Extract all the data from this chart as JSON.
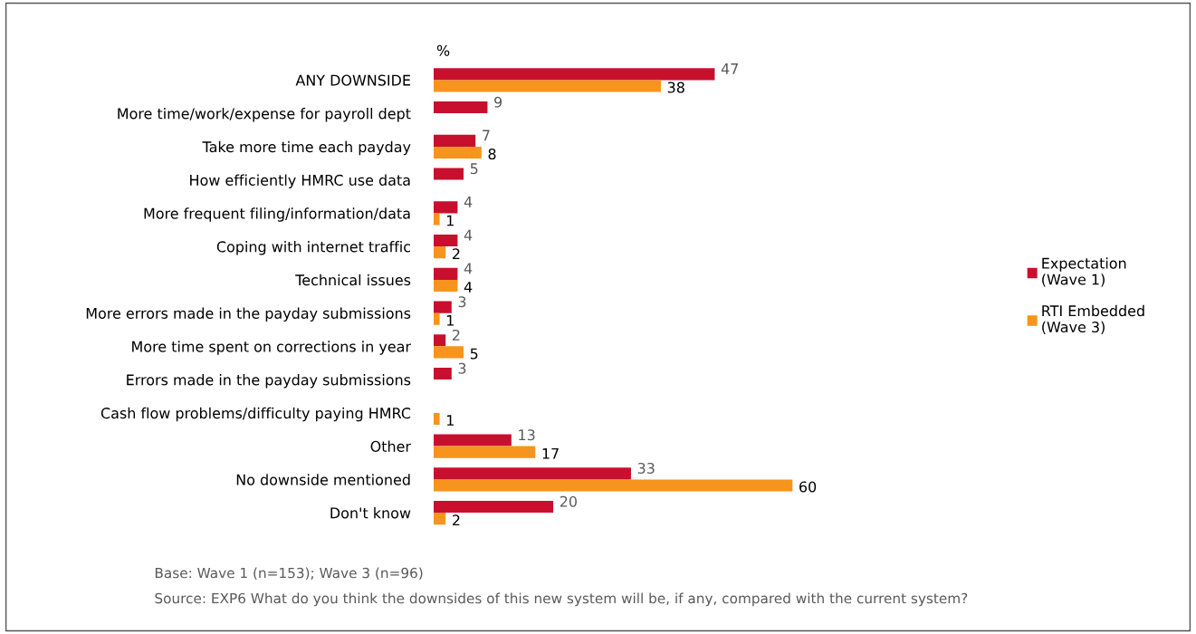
{
  "chart_data": {
    "type": "bar",
    "orientation": "horizontal",
    "xlabel": "%",
    "categories": [
      "ANY DOWNSIDE",
      "More time/work/expense for payroll dept",
      "Take more time each payday",
      "How efficiently HMRC use data",
      "More frequent filing/information/data",
      "Coping with internet traffic",
      "Technical issues",
      "More errors made in the payday submissions",
      "More time spent on corrections in year",
      "Errors made in the payday submissions",
      "Cash flow problems/difficulty paying HMRC",
      "Other",
      "No downside mentioned",
      "Don't know"
    ],
    "series": [
      {
        "name": "Expectation\n(Wave 1)",
        "color": "#c8102e",
        "values": [
          47,
          9,
          7,
          5,
          4,
          4,
          4,
          3,
          2,
          3,
          null,
          13,
          33,
          20
        ]
      },
      {
        "name": "RTI Embedded\n(Wave 3)",
        "color": "#f7941d",
        "values": [
          38,
          null,
          8,
          null,
          1,
          2,
          4,
          1,
          5,
          null,
          1,
          17,
          60,
          2
        ]
      }
    ],
    "data_labels": true,
    "legend": "right",
    "grid": false,
    "annotations": [
      "Base: Wave 1 (n=153); Wave 3 (n=96)",
      "Source: EXP6 What do you think the downsides of this new system will be, if any, compared with the current system?"
    ]
  }
}
